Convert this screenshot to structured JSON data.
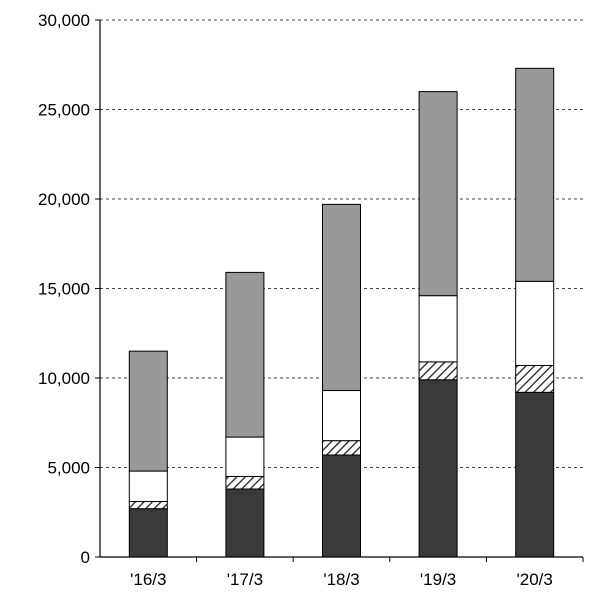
{
  "chart_data": {
    "type": "bar",
    "stacked": true,
    "categories": [
      "'16/3",
      "'17/3",
      "'18/3",
      "'19/3",
      "'20/3"
    ],
    "series": [
      {
        "values": [
          2700,
          3800,
          5700,
          9900,
          9200
        ],
        "color": "#3a3a3a",
        "pattern": "solid"
      },
      {
        "values": [
          400,
          700,
          800,
          1000,
          1500
        ],
        "color": "#ffffff",
        "pattern": "diagonal-hatch"
      },
      {
        "values": [
          1700,
          2200,
          2800,
          3700,
          4700
        ],
        "color": "#ffffff",
        "pattern": "solid"
      },
      {
        "values": [
          6700,
          9200,
          10400,
          11400,
          11900
        ],
        "color": "#999999",
        "pattern": "solid"
      }
    ],
    "y_ticks": [
      "0",
      "5,000",
      "10,000",
      "15,000",
      "20,000",
      "25,000",
      "30,000"
    ],
    "ylim": [
      0,
      30000
    ],
    "grid": "horizontal dashed",
    "title": "",
    "xlabel": "",
    "ylabel": ""
  }
}
